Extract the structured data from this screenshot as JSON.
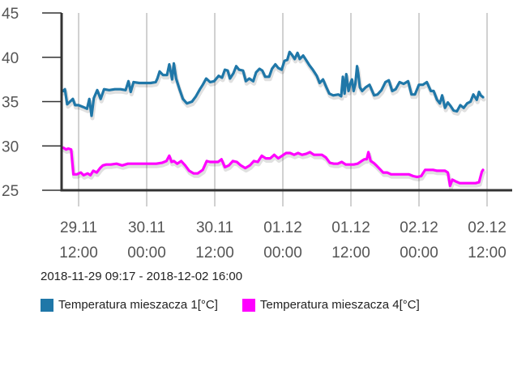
{
  "chart_data": {
    "type": "line",
    "title": "",
    "xlabel": "",
    "ylabel": "",
    "ylim": [
      25,
      45
    ],
    "xlim": [
      0,
      78.7
    ],
    "y_ticks": [
      25,
      30,
      35,
      40,
      45
    ],
    "x_ticks": [
      {
        "hours": 2.72,
        "line1": "29.11",
        "line2": "12:00"
      },
      {
        "hours": 14.72,
        "line1": "30.11",
        "line2": "00:00"
      },
      {
        "hours": 26.72,
        "line1": "30.11",
        "line2": "12:00"
      },
      {
        "hours": 38.72,
        "line1": "01.12",
        "line2": "00:00"
      },
      {
        "hours": 50.72,
        "line1": "01.12",
        "line2": "12:00"
      },
      {
        "hours": 62.72,
        "line1": "02.12",
        "line2": "00:00"
      },
      {
        "hours": 74.72,
        "line1": "02.12",
        "line2": "12:00"
      }
    ],
    "x_unit": "hours since 2018-11-29 09:17",
    "grid": true,
    "legend_position": "bottom-left",
    "date_range": "2018-11-29 09:17 - 2018-12-02 16:00",
    "series": [
      {
        "name": "Temperatura mieszacza 1[°C]",
        "color": "#1f77a8",
        "points": [
          [
            0.0,
            36.2
          ],
          [
            0.3,
            36.4
          ],
          [
            0.7,
            34.7
          ],
          [
            1.2,
            35.0
          ],
          [
            1.7,
            35.3
          ],
          [
            2.1,
            34.6
          ],
          [
            2.7,
            34.6
          ],
          [
            3.5,
            34.4
          ],
          [
            4.2,
            34.2
          ],
          [
            4.6,
            35.3
          ],
          [
            5.0,
            33.4
          ],
          [
            5.4,
            35.4
          ],
          [
            6.0,
            36.3
          ],
          [
            6.6,
            35.3
          ],
          [
            7.2,
            36.4
          ],
          [
            8.1,
            36.3
          ],
          [
            9.1,
            36.4
          ],
          [
            10.1,
            36.4
          ],
          [
            11.0,
            36.3
          ],
          [
            11.5,
            37.3
          ],
          [
            11.9,
            36.1
          ],
          [
            12.4,
            37.2
          ],
          [
            13.4,
            37.1
          ],
          [
            14.4,
            37.1
          ],
          [
            15.4,
            37.1
          ],
          [
            16.3,
            37.2
          ],
          [
            16.6,
            37.6
          ],
          [
            17.0,
            38.4
          ],
          [
            17.6,
            38.0
          ],
          [
            18.3,
            38.0
          ],
          [
            18.7,
            39.2
          ],
          [
            19.2,
            37.5
          ],
          [
            19.5,
            39.3
          ],
          [
            19.9,
            37.6
          ],
          [
            20.5,
            36.4
          ],
          [
            21.1,
            35.3
          ],
          [
            21.8,
            34.8
          ],
          [
            22.7,
            35.0
          ],
          [
            23.4,
            35.6
          ],
          [
            24.1,
            36.4
          ],
          [
            24.6,
            36.9
          ],
          [
            25.2,
            37.6
          ],
          [
            25.9,
            37.2
          ],
          [
            26.6,
            37.3
          ],
          [
            27.4,
            37.9
          ],
          [
            28.0,
            37.7
          ],
          [
            28.5,
            38.6
          ],
          [
            29.0,
            38.5
          ],
          [
            29.4,
            37.6
          ],
          [
            30.0,
            38.2
          ],
          [
            30.5,
            39.0
          ],
          [
            31.0,
            38.6
          ],
          [
            31.7,
            38.5
          ],
          [
            32.2,
            37.3
          ],
          [
            32.8,
            37.6
          ],
          [
            33.5,
            37.3
          ],
          [
            34.0,
            38.3
          ],
          [
            34.6,
            38.7
          ],
          [
            35.1,
            38.5
          ],
          [
            35.6,
            37.8
          ],
          [
            36.3,
            37.8
          ],
          [
            36.8,
            38.7
          ],
          [
            37.4,
            39.2
          ],
          [
            37.9,
            38.8
          ],
          [
            38.5,
            38.6
          ],
          [
            39.0,
            39.6
          ],
          [
            39.5,
            39.7
          ],
          [
            39.9,
            40.6
          ],
          [
            40.3,
            40.3
          ],
          [
            40.8,
            39.8
          ],
          [
            41.3,
            40.5
          ],
          [
            41.7,
            39.8
          ],
          [
            42.3,
            40.2
          ],
          [
            42.8,
            39.7
          ],
          [
            43.4,
            39.1
          ],
          [
            44.0,
            38.6
          ],
          [
            44.7,
            37.9
          ],
          [
            45.2,
            37.1
          ],
          [
            45.8,
            37.5
          ],
          [
            46.4,
            36.6
          ],
          [
            46.9,
            35.9
          ],
          [
            47.6,
            35.7
          ],
          [
            48.5,
            35.8
          ],
          [
            49.0,
            35.6
          ],
          [
            49.3,
            37.8
          ],
          [
            49.6,
            35.9
          ],
          [
            49.9,
            38.1
          ],
          [
            50.3,
            36.2
          ],
          [
            50.6,
            37.0
          ],
          [
            50.9,
            37.5
          ],
          [
            51.2,
            36.2
          ],
          [
            51.5,
            37.0
          ],
          [
            51.8,
            39.0
          ],
          [
            52.0,
            38.2
          ],
          [
            52.3,
            36.6
          ],
          [
            52.7,
            36.2
          ],
          [
            53.3,
            36.6
          ],
          [
            54.0,
            36.9
          ],
          [
            54.8,
            35.7
          ],
          [
            55.4,
            35.8
          ],
          [
            56.1,
            36.3
          ],
          [
            56.8,
            37.2
          ],
          [
            57.4,
            37.4
          ],
          [
            58.0,
            36.2
          ],
          [
            58.6,
            36.4
          ],
          [
            59.3,
            37.2
          ],
          [
            60.0,
            37.0
          ],
          [
            60.8,
            37.3
          ],
          [
            61.4,
            35.8
          ],
          [
            62.0,
            35.8
          ],
          [
            62.7,
            36.9
          ],
          [
            63.4,
            36.9
          ],
          [
            64.1,
            37.2
          ],
          [
            64.8,
            36.2
          ],
          [
            65.3,
            36.2
          ],
          [
            65.9,
            35.2
          ],
          [
            66.4,
            34.8
          ],
          [
            66.8,
            35.7
          ],
          [
            67.3,
            34.3
          ],
          [
            67.8,
            34.9
          ],
          [
            68.3,
            34.5
          ],
          [
            68.8,
            34.0
          ],
          [
            69.4,
            33.9
          ],
          [
            70.0,
            34.6
          ],
          [
            70.6,
            34.3
          ],
          [
            71.2,
            34.8
          ],
          [
            71.8,
            35.0
          ],
          [
            72.3,
            35.8
          ],
          [
            72.9,
            35.2
          ],
          [
            73.3,
            36.1
          ],
          [
            73.6,
            35.7
          ],
          [
            74.0,
            35.5
          ]
        ]
      },
      {
        "name": "Temperatura mieszacza 4[°C]",
        "color": "#ff00ff",
        "points": [
          [
            0.0,
            29.8
          ],
          [
            0.5,
            29.6
          ],
          [
            0.9,
            29.7
          ],
          [
            1.4,
            29.6
          ],
          [
            1.8,
            26.8
          ],
          [
            2.4,
            26.8
          ],
          [
            3.1,
            27.0
          ],
          [
            3.6,
            26.7
          ],
          [
            4.3,
            26.9
          ],
          [
            4.8,
            26.7
          ],
          [
            5.3,
            27.2
          ],
          [
            5.9,
            27.0
          ],
          [
            6.5,
            27.5
          ],
          [
            7.0,
            27.8
          ],
          [
            7.6,
            27.9
          ],
          [
            8.4,
            27.9
          ],
          [
            9.4,
            28.0
          ],
          [
            10.4,
            27.8
          ],
          [
            11.4,
            28.0
          ],
          [
            12.4,
            28.0
          ],
          [
            13.4,
            28.0
          ],
          [
            14.4,
            28.0
          ],
          [
            15.4,
            28.0
          ],
          [
            16.4,
            28.0
          ],
          [
            17.4,
            28.1
          ],
          [
            18.2,
            28.3
          ],
          [
            18.7,
            28.9
          ],
          [
            19.1,
            28.2
          ],
          [
            19.5,
            28.3
          ],
          [
            20.1,
            28.0
          ],
          [
            20.8,
            28.3
          ],
          [
            21.5,
            27.8
          ],
          [
            22.2,
            27.2
          ],
          [
            23.0,
            26.9
          ],
          [
            23.7,
            26.9
          ],
          [
            24.6,
            27.3
          ],
          [
            25.3,
            28.3
          ],
          [
            25.9,
            28.2
          ],
          [
            26.6,
            28.2
          ],
          [
            27.3,
            28.2
          ],
          [
            27.9,
            28.5
          ],
          [
            28.5,
            27.6
          ],
          [
            29.2,
            27.8
          ],
          [
            29.9,
            28.3
          ],
          [
            30.6,
            28.2
          ],
          [
            31.3,
            27.8
          ],
          [
            32.1,
            27.5
          ],
          [
            32.9,
            27.8
          ],
          [
            33.6,
            28.3
          ],
          [
            34.3,
            28.2
          ],
          [
            35.0,
            28.9
          ],
          [
            35.7,
            28.6
          ],
          [
            36.5,
            28.6
          ],
          [
            37.2,
            29.0
          ],
          [
            37.9,
            28.6
          ],
          [
            38.6,
            28.9
          ],
          [
            39.3,
            29.2
          ],
          [
            40.0,
            29.2
          ],
          [
            40.7,
            29.0
          ],
          [
            41.4,
            29.2
          ],
          [
            42.1,
            29.0
          ],
          [
            42.8,
            29.1
          ],
          [
            43.5,
            29.3
          ],
          [
            44.2,
            29.0
          ],
          [
            44.9,
            29.0
          ],
          [
            45.6,
            29.0
          ],
          [
            46.3,
            28.7
          ],
          [
            47.0,
            28.1
          ],
          [
            47.7,
            28.0
          ],
          [
            48.4,
            28.0
          ],
          [
            49.1,
            28.2
          ],
          [
            49.8,
            27.9
          ],
          [
            50.5,
            27.9
          ],
          [
            51.2,
            27.9
          ],
          [
            51.9,
            28.0
          ],
          [
            52.6,
            28.3
          ],
          [
            53.1,
            28.5
          ],
          [
            53.5,
            28.5
          ],
          [
            53.8,
            29.3
          ],
          [
            54.2,
            28.3
          ],
          [
            54.7,
            28.1
          ],
          [
            55.2,
            27.8
          ],
          [
            55.8,
            27.4
          ],
          [
            56.4,
            27.0
          ],
          [
            57.1,
            27.0
          ],
          [
            57.8,
            26.8
          ],
          [
            58.5,
            26.8
          ],
          [
            59.3,
            26.8
          ],
          [
            60.1,
            26.8
          ],
          [
            60.9,
            26.8
          ],
          [
            61.7,
            26.6
          ],
          [
            62.4,
            26.5
          ],
          [
            63.1,
            26.6
          ],
          [
            63.8,
            27.3
          ],
          [
            64.5,
            27.3
          ],
          [
            65.2,
            27.3
          ],
          [
            65.9,
            27.2
          ],
          [
            66.6,
            27.2
          ],
          [
            67.3,
            27.2
          ],
          [
            67.8,
            27.0
          ],
          [
            68.2,
            25.5
          ],
          [
            68.6,
            26.2
          ],
          [
            69.2,
            26.0
          ],
          [
            69.9,
            25.8
          ],
          [
            70.6,
            25.8
          ],
          [
            71.3,
            25.8
          ],
          [
            72.0,
            25.8
          ],
          [
            72.7,
            25.8
          ],
          [
            73.3,
            25.9
          ],
          [
            73.8,
            27.1
          ],
          [
            74.0,
            27.3
          ]
        ]
      }
    ]
  }
}
